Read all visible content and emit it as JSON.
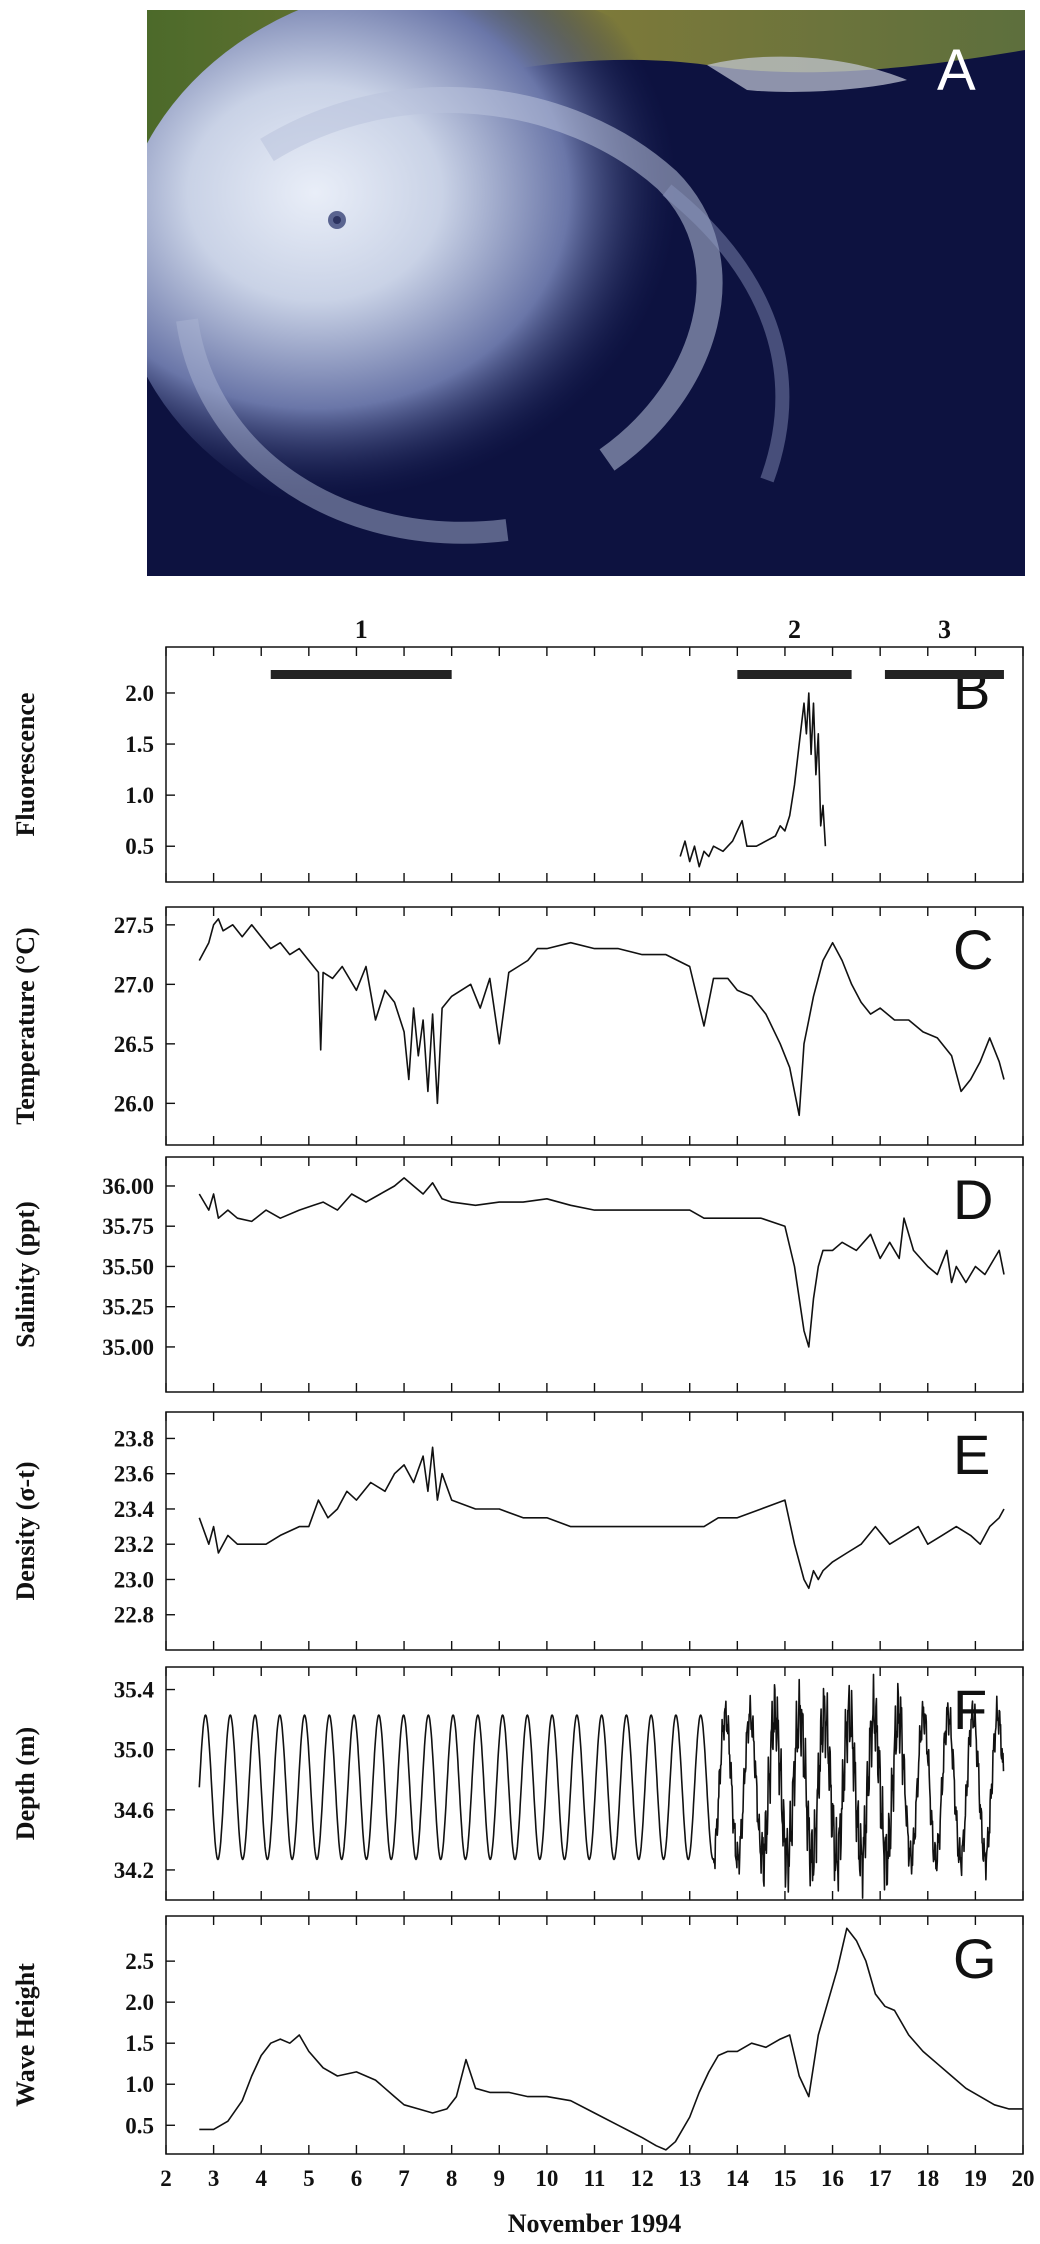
{
  "figure": {
    "panel_a_label": "A",
    "x_axis_title": "November 1994",
    "periods": [
      {
        "label": "1",
        "start": 4.2,
        "end": 8.0
      },
      {
        "label": "2",
        "start": 14.0,
        "end": 16.4
      },
      {
        "label": "3",
        "start": 17.1,
        "end": 19.6
      }
    ]
  },
  "chart_data": [
    {
      "panel": "B",
      "type": "line",
      "ylabel": "Fluorescence",
      "yticks": [
        "2.0",
        "1.5",
        "1.0",
        "0.5"
      ],
      "ylim": [
        0.15,
        2.45
      ],
      "xlim": [
        2,
        20
      ],
      "x": [
        12.8,
        12.9,
        13.0,
        13.1,
        13.2,
        13.3,
        13.4,
        13.5,
        13.7,
        13.9,
        14.0,
        14.1,
        14.2,
        14.4,
        14.6,
        14.8,
        14.9,
        15.0,
        15.1,
        15.2,
        15.3,
        15.4,
        15.45,
        15.5,
        15.55,
        15.6,
        15.65,
        15.7,
        15.75,
        15.8,
        15.85
      ],
      "y": [
        0.4,
        0.55,
        0.35,
        0.5,
        0.3,
        0.45,
        0.4,
        0.5,
        0.45,
        0.55,
        0.65,
        0.75,
        0.5,
        0.5,
        0.55,
        0.6,
        0.7,
        0.65,
        0.8,
        1.1,
        1.5,
        1.9,
        1.6,
        2.0,
        1.4,
        1.9,
        1.2,
        1.6,
        0.7,
        0.9,
        0.5
      ]
    },
    {
      "panel": "C",
      "type": "line",
      "ylabel": "Temperature (°C)",
      "yticks": [
        "27.5",
        "27.0",
        "26.5",
        "26.0"
      ],
      "ylim": [
        25.65,
        27.65
      ],
      "xlim": [
        2,
        20
      ],
      "x": [
        2.7,
        2.9,
        3.0,
        3.1,
        3.2,
        3.4,
        3.6,
        3.8,
        4.0,
        4.2,
        4.4,
        4.6,
        4.8,
        5.0,
        5.2,
        5.25,
        5.3,
        5.5,
        5.7,
        6.0,
        6.2,
        6.4,
        6.6,
        6.8,
        7.0,
        7.1,
        7.2,
        7.3,
        7.4,
        7.5,
        7.6,
        7.7,
        7.8,
        8.0,
        8.2,
        8.4,
        8.6,
        8.8,
        9.0,
        9.2,
        9.4,
        9.6,
        9.8,
        10.0,
        10.5,
        11.0,
        11.5,
        12.0,
        12.5,
        13.0,
        13.3,
        13.5,
        13.8,
        14.0,
        14.3,
        14.6,
        14.9,
        15.1,
        15.3,
        15.4,
        15.5,
        15.6,
        15.8,
        16.0,
        16.2,
        16.4,
        16.6,
        16.8,
        17.0,
        17.3,
        17.6,
        17.9,
        18.2,
        18.5,
        18.7,
        18.9,
        19.1,
        19.3,
        19.5,
        19.6
      ],
      "y": [
        27.2,
        27.35,
        27.5,
        27.55,
        27.45,
        27.5,
        27.4,
        27.5,
        27.4,
        27.3,
        27.35,
        27.25,
        27.3,
        27.2,
        27.1,
        26.45,
        27.1,
        27.05,
        27.15,
        26.95,
        27.15,
        26.7,
        26.95,
        26.85,
        26.6,
        26.2,
        26.8,
        26.4,
        26.7,
        26.1,
        26.75,
        26.0,
        26.8,
        26.9,
        26.95,
        27.0,
        26.8,
        27.05,
        26.5,
        27.1,
        27.15,
        27.2,
        27.3,
        27.3,
        27.35,
        27.3,
        27.3,
        27.25,
        27.25,
        27.15,
        26.65,
        27.05,
        27.05,
        26.95,
        26.9,
        26.75,
        26.5,
        26.3,
        25.9,
        26.5,
        26.7,
        26.9,
        27.2,
        27.35,
        27.2,
        27.0,
        26.85,
        26.75,
        26.8,
        26.7,
        26.7,
        26.6,
        26.55,
        26.4,
        26.1,
        26.2,
        26.35,
        26.55,
        26.35,
        26.2
      ]
    },
    {
      "panel": "D",
      "type": "line",
      "ylabel": "Salinity (ppt)",
      "yticks": [
        "36.00",
        "35.75",
        "35.50",
        "35.25",
        "35.00"
      ],
      "ylim": [
        34.72,
        36.18
      ],
      "xlim": [
        2,
        20
      ],
      "x": [
        2.7,
        2.9,
        3.0,
        3.1,
        3.3,
        3.5,
        3.8,
        4.1,
        4.4,
        4.8,
        5.1,
        5.3,
        5.6,
        5.9,
        6.2,
        6.5,
        6.8,
        7.0,
        7.2,
        7.4,
        7.6,
        7.8,
        8.0,
        8.5,
        9.0,
        9.5,
        10.0,
        10.5,
        11.0,
        11.5,
        12.0,
        12.5,
        13.0,
        13.3,
        13.6,
        14.0,
        14.5,
        15.0,
        15.2,
        15.4,
        15.5,
        15.6,
        15.7,
        15.8,
        16.0,
        16.2,
        16.5,
        16.8,
        17.0,
        17.2,
        17.4,
        17.5,
        17.7,
        18.0,
        18.2,
        18.4,
        18.5,
        18.6,
        18.8,
        19.0,
        19.2,
        19.4,
        19.5,
        19.6
      ],
      "y": [
        35.95,
        35.85,
        35.95,
        35.8,
        35.85,
        35.8,
        35.78,
        35.85,
        35.8,
        35.85,
        35.88,
        35.9,
        35.85,
        35.95,
        35.9,
        35.95,
        36.0,
        36.05,
        36.0,
        35.95,
        36.02,
        35.92,
        35.9,
        35.88,
        35.9,
        35.9,
        35.92,
        35.88,
        35.85,
        35.85,
        35.85,
        35.85,
        35.85,
        35.8,
        35.8,
        35.8,
        35.8,
        35.75,
        35.5,
        35.1,
        35.0,
        35.3,
        35.5,
        35.6,
        35.6,
        35.65,
        35.6,
        35.7,
        35.55,
        35.65,
        35.55,
        35.8,
        35.6,
        35.5,
        35.45,
        35.6,
        35.4,
        35.5,
        35.4,
        35.5,
        35.45,
        35.55,
        35.6,
        35.45
      ]
    },
    {
      "panel": "E",
      "type": "line",
      "ylabel": "Density (σ-t)",
      "yticks": [
        "23.8",
        "23.6",
        "23.4",
        "23.2",
        "23.0",
        "22.8"
      ],
      "ylim": [
        22.6,
        23.95
      ],
      "xlim": [
        2,
        20
      ],
      "x": [
        2.7,
        2.9,
        3.0,
        3.1,
        3.3,
        3.5,
        3.8,
        4.1,
        4.4,
        4.8,
        5.0,
        5.2,
        5.4,
        5.6,
        5.8,
        6.0,
        6.3,
        6.6,
        6.8,
        7.0,
        7.2,
        7.4,
        7.5,
        7.6,
        7.7,
        7.8,
        8.0,
        8.5,
        9.0,
        9.5,
        10.0,
        10.5,
        11.0,
        11.5,
        12.0,
        12.5,
        13.0,
        13.3,
        13.6,
        14.0,
        14.5,
        15.0,
        15.2,
        15.4,
        15.5,
        15.6,
        15.7,
        15.8,
        16.0,
        16.3,
        16.6,
        16.9,
        17.2,
        17.5,
        17.8,
        18.0,
        18.3,
        18.6,
        18.9,
        19.1,
        19.3,
        19.5,
        19.6
      ],
      "y": [
        23.35,
        23.2,
        23.3,
        23.15,
        23.25,
        23.2,
        23.2,
        23.2,
        23.25,
        23.3,
        23.3,
        23.45,
        23.35,
        23.4,
        23.5,
        23.45,
        23.55,
        23.5,
        23.6,
        23.65,
        23.55,
        23.7,
        23.5,
        23.75,
        23.45,
        23.6,
        23.45,
        23.4,
        23.4,
        23.35,
        23.35,
        23.3,
        23.3,
        23.3,
        23.3,
        23.3,
        23.3,
        23.3,
        23.35,
        23.35,
        23.4,
        23.45,
        23.2,
        23.0,
        22.95,
        23.05,
        23.0,
        23.05,
        23.1,
        23.15,
        23.2,
        23.3,
        23.2,
        23.25,
        23.3,
        23.2,
        23.25,
        23.3,
        23.25,
        23.2,
        23.3,
        23.35,
        23.4
      ]
    },
    {
      "panel": "F",
      "type": "line",
      "ylabel": "Depth (m)",
      "yticks": [
        "35.4",
        "35.0",
        "34.6",
        "34.2"
      ],
      "ylim": [
        34.0,
        35.55
      ],
      "xlim": [
        2,
        20
      ],
      "mean": 34.7,
      "amplitude": 0.48,
      "period_days": 0.52,
      "start": 2.7,
      "end": 19.6
    },
    {
      "panel": "G",
      "type": "line",
      "ylabel": "Wave Height",
      "yticks": [
        "2.5",
        "2.0",
        "1.5",
        "1.0",
        "0.5"
      ],
      "ylim": [
        0.15,
        3.05
      ],
      "xticks": [
        "2",
        "3",
        "4",
        "5",
        "6",
        "7",
        "8",
        "9",
        "10",
        "11",
        "12",
        "13",
        "14",
        "15",
        "16",
        "17",
        "18",
        "19",
        "20"
      ],
      "xlim": [
        2,
        20
      ],
      "x": [
        2.7,
        3.0,
        3.3,
        3.6,
        3.8,
        4.0,
        4.2,
        4.4,
        4.6,
        4.8,
        5.0,
        5.3,
        5.6,
        6.0,
        6.4,
        6.8,
        7.0,
        7.3,
        7.6,
        7.9,
        8.1,
        8.3,
        8.5,
        8.8,
        9.2,
        9.6,
        10.0,
        10.5,
        11.0,
        11.5,
        12.0,
        12.3,
        12.5,
        12.7,
        13.0,
        13.2,
        13.4,
        13.6,
        13.8,
        14.0,
        14.3,
        14.6,
        14.9,
        15.1,
        15.3,
        15.5,
        15.7,
        15.9,
        16.1,
        16.3,
        16.5,
        16.7,
        16.9,
        17.1,
        17.3,
        17.6,
        17.9,
        18.2,
        18.5,
        18.8,
        19.1,
        19.4,
        19.7,
        20.0
      ],
      "y": [
        0.45,
        0.45,
        0.55,
        0.8,
        1.1,
        1.35,
        1.5,
        1.55,
        1.5,
        1.6,
        1.4,
        1.2,
        1.1,
        1.15,
        1.05,
        0.85,
        0.75,
        0.7,
        0.65,
        0.7,
        0.85,
        1.3,
        0.95,
        0.9,
        0.9,
        0.85,
        0.85,
        0.8,
        0.65,
        0.5,
        0.35,
        0.25,
        0.2,
        0.3,
        0.6,
        0.9,
        1.15,
        1.35,
        1.4,
        1.4,
        1.5,
        1.45,
        1.55,
        1.6,
        1.1,
        0.85,
        1.6,
        2.0,
        2.4,
        2.9,
        2.75,
        2.5,
        2.1,
        1.95,
        1.9,
        1.6,
        1.4,
        1.25,
        1.1,
        0.95,
        0.85,
        0.75,
        0.7,
        0.7
      ]
    }
  ]
}
